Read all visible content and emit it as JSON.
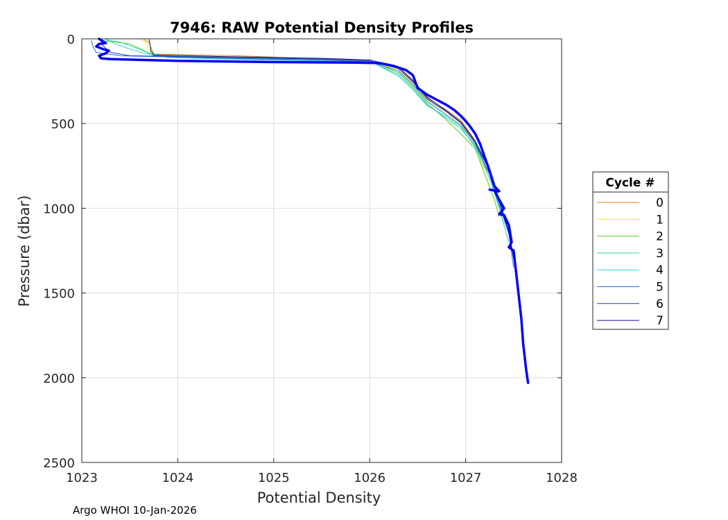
{
  "chart_data": {
    "type": "line",
    "title": "7946: RAW Potential Density Profiles",
    "xlabel": "Potential Density",
    "ylabel": "Pressure (dbar)",
    "xlim": [
      1023,
      1028
    ],
    "ylim": [
      0,
      2500
    ],
    "y_reversed": true,
    "grid": true,
    "x_ticks": [
      "1023",
      "1024",
      "1025",
      "1026",
      "1027",
      "1028"
    ],
    "y_ticks": [
      "0",
      "500",
      "1000",
      "1500",
      "2000",
      "2500"
    ],
    "legend": {
      "title": "Cycle #",
      "placement": "right"
    },
    "series": [
      {
        "name": "0",
        "color": "#d9851e",
        "thick": false,
        "points": [
          [
            1023.65,
            5
          ],
          [
            1023.7,
            20
          ],
          [
            1023.72,
            50
          ],
          [
            1023.75,
            90
          ],
          [
            1024.6,
            100
          ],
          [
            1025.6,
            120
          ],
          [
            1026.0,
            130
          ],
          [
            1026.3,
            175
          ],
          [
            1026.45,
            250
          ],
          [
            1026.6,
            350
          ],
          [
            1026.8,
            420
          ],
          [
            1026.95,
            480
          ],
          [
            1027.1,
            600
          ],
          [
            1027.2,
            750
          ],
          [
            1027.3,
            900
          ]
        ]
      },
      {
        "name": "1",
        "color": "#f0e60d",
        "thick": false,
        "points": [
          [
            1023.62,
            5
          ],
          [
            1023.67,
            20
          ],
          [
            1023.7,
            60
          ],
          [
            1023.74,
            95
          ],
          [
            1024.5,
            105
          ],
          [
            1025.5,
            120
          ],
          [
            1026.0,
            135
          ],
          [
            1026.3,
            180
          ],
          [
            1026.45,
            260
          ],
          [
            1026.6,
            360
          ],
          [
            1026.8,
            440
          ],
          [
            1026.95,
            500
          ],
          [
            1027.1,
            620
          ],
          [
            1027.2,
            800
          ],
          [
            1027.3,
            950
          ]
        ]
      },
      {
        "name": "2",
        "color": "#4fd422",
        "thick": false,
        "points": [
          [
            1023.2,
            10
          ],
          [
            1023.5,
            30
          ],
          [
            1023.65,
            70
          ],
          [
            1023.75,
            100
          ],
          [
            1024.5,
            110
          ],
          [
            1025.5,
            125
          ],
          [
            1026.05,
            140
          ],
          [
            1026.3,
            200
          ],
          [
            1026.45,
            280
          ],
          [
            1026.6,
            380
          ],
          [
            1026.8,
            480
          ],
          [
            1026.95,
            560
          ],
          [
            1027.1,
            650
          ],
          [
            1027.2,
            800
          ],
          [
            1027.3,
            950
          ],
          [
            1027.35,
            1050
          ]
        ]
      },
      {
        "name": "3",
        "color": "#27dba0",
        "thick": false,
        "points": [
          [
            1023.25,
            5
          ],
          [
            1023.4,
            20
          ],
          [
            1023.55,
            50
          ],
          [
            1023.68,
            80
          ],
          [
            1023.85,
            100
          ],
          [
            1024.5,
            115
          ],
          [
            1025.5,
            130
          ],
          [
            1026.05,
            145
          ],
          [
            1026.3,
            210
          ],
          [
            1026.45,
            290
          ],
          [
            1026.6,
            390
          ],
          [
            1026.8,
            470
          ],
          [
            1026.95,
            530
          ],
          [
            1027.1,
            630
          ],
          [
            1027.25,
            800
          ],
          [
            1027.35,
            1000
          ],
          [
            1027.4,
            1100
          ]
        ]
      },
      {
        "name": "4",
        "color": "#22d1d9",
        "thick": false,
        "points": [
          [
            1023.25,
            5
          ],
          [
            1023.35,
            30
          ],
          [
            1023.5,
            60
          ],
          [
            1023.65,
            85
          ],
          [
            1023.9,
            110
          ],
          [
            1024.5,
            120
          ],
          [
            1025.5,
            130
          ],
          [
            1026.05,
            145
          ],
          [
            1026.3,
            220
          ],
          [
            1026.45,
            300
          ],
          [
            1026.6,
            395
          ],
          [
            1026.8,
            460
          ],
          [
            1026.95,
            520
          ],
          [
            1027.1,
            640
          ],
          [
            1027.25,
            820
          ],
          [
            1027.35,
            1000
          ],
          [
            1027.45,
            1200
          ]
        ]
      },
      {
        "name": "5",
        "color": "#1a6fd8",
        "thick": false,
        "points": [
          [
            1023.1,
            10
          ],
          [
            1023.12,
            50
          ],
          [
            1023.15,
            80
          ],
          [
            1023.4,
            100
          ],
          [
            1024.5,
            115
          ],
          [
            1025.5,
            125
          ],
          [
            1026.0,
            135
          ],
          [
            1026.3,
            190
          ],
          [
            1026.45,
            270
          ],
          [
            1026.6,
            370
          ],
          [
            1026.8,
            450
          ],
          [
            1026.95,
            510
          ],
          [
            1027.1,
            620
          ],
          [
            1027.25,
            800
          ],
          [
            1027.35,
            980
          ],
          [
            1027.45,
            1150
          ],
          [
            1027.5,
            1350
          ]
        ]
      },
      {
        "name": "6",
        "color": "#1f33d1",
        "thick": false,
        "points": [
          [
            1023.2,
            5
          ],
          [
            1023.22,
            40
          ],
          [
            1023.3,
            80
          ],
          [
            1023.5,
            100
          ],
          [
            1024.5,
            110
          ],
          [
            1025.5,
            120
          ],
          [
            1026.0,
            130
          ],
          [
            1026.3,
            175
          ],
          [
            1026.45,
            255
          ],
          [
            1026.6,
            355
          ],
          [
            1026.8,
            430
          ],
          [
            1026.95,
            495
          ],
          [
            1027.1,
            610
          ],
          [
            1027.25,
            780
          ],
          [
            1027.35,
            960
          ],
          [
            1027.45,
            1150
          ],
          [
            1027.5,
            1300
          ]
        ]
      },
      {
        "name": "7",
        "color": "#0a0a8c",
        "thick": false,
        "points": [
          [
            1023.7,
            5
          ],
          [
            1023.71,
            30
          ],
          [
            1023.72,
            70
          ],
          [
            1023.75,
            95
          ],
          [
            1024.5,
            105
          ],
          [
            1025.5,
            115
          ],
          [
            1026.0,
            125
          ],
          [
            1026.3,
            165
          ],
          [
            1026.45,
            245
          ],
          [
            1026.6,
            345
          ],
          [
            1026.8,
            425
          ],
          [
            1026.95,
            490
          ],
          [
            1027.1,
            605
          ],
          [
            1027.25,
            770
          ],
          [
            1027.35,
            950
          ],
          [
            1027.45,
            1140
          ],
          [
            1027.52,
            1350
          ],
          [
            1027.55,
            1500
          ]
        ]
      },
      {
        "name": "",
        "color": "#0000ff",
        "thick": true,
        "points": [
          [
            1023.18,
            0
          ],
          [
            1023.22,
            15
          ],
          [
            1023.25,
            25
          ],
          [
            1023.18,
            30
          ],
          [
            1023.15,
            45
          ],
          [
            1023.22,
            60
          ],
          [
            1023.28,
            70
          ],
          [
            1023.25,
            85
          ],
          [
            1023.18,
            100
          ],
          [
            1023.2,
            115
          ],
          [
            1023.3,
            120
          ],
          [
            1024.0,
            130
          ],
          [
            1025.0,
            137
          ],
          [
            1025.8,
            140
          ],
          [
            1026.1,
            143
          ],
          [
            1026.25,
            160
          ],
          [
            1026.38,
            185
          ],
          [
            1026.45,
            215
          ],
          [
            1026.48,
            260
          ],
          [
            1026.5,
            290
          ],
          [
            1026.55,
            310
          ],
          [
            1026.6,
            330
          ],
          [
            1026.7,
            360
          ],
          [
            1026.8,
            390
          ],
          [
            1026.88,
            420
          ],
          [
            1026.95,
            455
          ],
          [
            1027.0,
            485
          ],
          [
            1027.05,
            520
          ],
          [
            1027.1,
            560
          ],
          [
            1027.15,
            620
          ],
          [
            1027.2,
            700
          ],
          [
            1027.25,
            780
          ],
          [
            1027.3,
            870
          ],
          [
            1027.35,
            900
          ],
          [
            1027.25,
            890
          ],
          [
            1027.3,
            895
          ],
          [
            1027.35,
            950
          ],
          [
            1027.4,
            1000
          ],
          [
            1027.35,
            1035
          ],
          [
            1027.4,
            1040
          ],
          [
            1027.45,
            1100
          ],
          [
            1027.48,
            1200
          ],
          [
            1027.45,
            1230
          ],
          [
            1027.5,
            1250
          ],
          [
            1027.52,
            1350
          ],
          [
            1027.55,
            1500
          ],
          [
            1027.58,
            1650
          ],
          [
            1027.6,
            1800
          ],
          [
            1027.63,
            1950
          ],
          [
            1027.65,
            2030
          ]
        ]
      }
    ]
  },
  "footer": {
    "text": "Argo WHOI 10-Jan-2026"
  }
}
